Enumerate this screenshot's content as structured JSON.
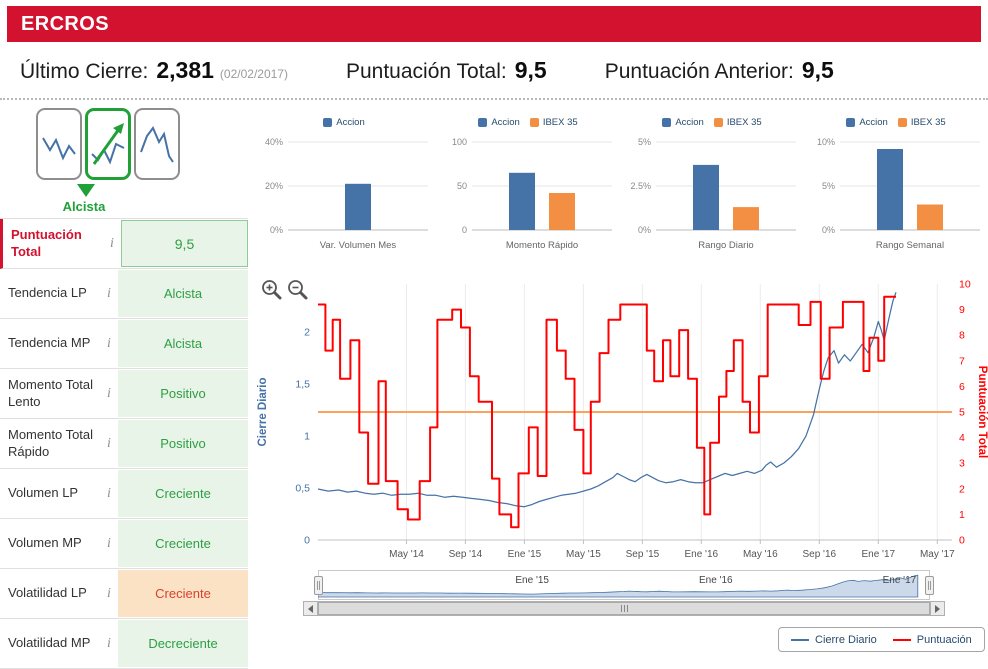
{
  "colors": {
    "accent": "#d2122e",
    "bar_blue": "#4572a7",
    "bar_orange": "#f28f43",
    "line_blue": "#4572a7",
    "line_red": "#ff0000",
    "threshold": "#f9a45c",
    "positive_text": "#2f9e44",
    "positive_bg": "#e7f4e7",
    "negative_text": "#d9412f",
    "negative_bg": "#fbe2c4",
    "legend_text": "#274b6d",
    "trend_green": "#21a038"
  },
  "header": {
    "title": "ERCROS"
  },
  "summary": {
    "items": [
      {
        "label": "Último Cierre:",
        "value": "2,381",
        "suffix": "(02/02/2017)"
      },
      {
        "label": "Puntuación Total:",
        "value": "9,5",
        "suffix": ""
      },
      {
        "label": "Puntuación Anterior:",
        "value": "9,5",
        "suffix": ""
      }
    ]
  },
  "trend": {
    "label": "Alcista"
  },
  "indicators": [
    {
      "label": "Puntuación Total",
      "value": "9,5",
      "state": "score"
    },
    {
      "label": "Tendencia LP",
      "value": "Alcista",
      "state": "positive"
    },
    {
      "label": "Tendencia MP",
      "value": "Alcista",
      "state": "positive"
    },
    {
      "label": "Momento Total Lento",
      "value": "Positivo",
      "state": "positive"
    },
    {
      "label": "Momento Total Rápido",
      "value": "Positivo",
      "state": "positive"
    },
    {
      "label": "Volumen LP",
      "value": "Creciente",
      "state": "positive"
    },
    {
      "label": "Volumen MP",
      "value": "Creciente",
      "state": "positive"
    },
    {
      "label": "Volatilidad LP",
      "value": "Creciente",
      "state": "negative"
    },
    {
      "label": "Volatilidad MP",
      "value": "Decreciente",
      "state": "positive"
    }
  ],
  "chart_data": [
    {
      "type": "bar",
      "title": "Var. Volumen Mes",
      "legend": [
        "Accion"
      ],
      "ymax": 40,
      "yticks": [
        [
          0,
          "0%"
        ],
        [
          20,
          "20%"
        ],
        [
          40,
          "40%"
        ]
      ],
      "series": [
        {
          "name": "Accion",
          "value": 21
        }
      ]
    },
    {
      "type": "bar",
      "title": "Momento Rápido",
      "legend": [
        "Accion",
        "IBEX 35"
      ],
      "ymax": 100,
      "yticks": [
        [
          0,
          "0"
        ],
        [
          50,
          "50"
        ],
        [
          100,
          "100"
        ]
      ],
      "series": [
        {
          "name": "Accion",
          "value": 65
        },
        {
          "name": "IBEX 35",
          "value": 42
        }
      ]
    },
    {
      "type": "bar",
      "title": "Rango Diario",
      "legend": [
        "Accion",
        "IBEX 35"
      ],
      "ymax": 5,
      "yticks": [
        [
          0,
          "0%"
        ],
        [
          2.5,
          "2.5%"
        ],
        [
          5,
          "5%"
        ]
      ],
      "series": [
        {
          "name": "Accion",
          "value": 3.7
        },
        {
          "name": "IBEX 35",
          "value": 1.3
        }
      ]
    },
    {
      "type": "bar",
      "title": "Rango Semanal",
      "legend": [
        "Accion",
        "IBEX 35"
      ],
      "ymax": 10,
      "yticks": [
        [
          0,
          "0%"
        ],
        [
          5,
          "5%"
        ],
        [
          10,
          "10%"
        ]
      ],
      "series": [
        {
          "name": "Accion",
          "value": 9.2
        },
        {
          "name": "IBEX 35",
          "value": 2.9
        }
      ]
    },
    {
      "type": "line",
      "title": "",
      "x_range": [
        0,
        43
      ],
      "x_ticks": [
        {
          "m": 6,
          "label": "May '14"
        },
        {
          "m": 10,
          "label": "Sep '14"
        },
        {
          "m": 14,
          "label": "Ene '15"
        },
        {
          "m": 18,
          "label": "May '15"
        },
        {
          "m": 22,
          "label": "Sep '15"
        },
        {
          "m": 26,
          "label": "Ene '16"
        },
        {
          "m": 30,
          "label": "May '16"
        },
        {
          "m": 34,
          "label": "Sep '16"
        },
        {
          "m": 38,
          "label": "Ene '17"
        },
        {
          "m": 42,
          "label": "May '17"
        }
      ],
      "left_axis": {
        "label": "Cierre Diario",
        "max": 2.46,
        "ticks": [
          [
            0,
            "0"
          ],
          [
            0.5,
            "0,5"
          ],
          [
            1,
            "1"
          ],
          [
            1.5,
            "1,5"
          ],
          [
            2,
            "2"
          ]
        ]
      },
      "right_axis": {
        "label": "Puntuación Total",
        "max": 10,
        "ticks": [
          0,
          1,
          2,
          3,
          4,
          5,
          6,
          7,
          8,
          9,
          10
        ]
      },
      "threshold": 5,
      "series": [
        {
          "name": "Cierre Diario",
          "axis": "left",
          "style": "line",
          "color_key": "line_blue",
          "points": [
            [
              0,
              0.49
            ],
            [
              0.7,
              0.47
            ],
            [
              1.4,
              0.48
            ],
            [
              2,
              0.46
            ],
            [
              2.6,
              0.47
            ],
            [
              3.2,
              0.45
            ],
            [
              3.8,
              0.44
            ],
            [
              4.4,
              0.45
            ],
            [
              5,
              0.43
            ],
            [
              5.6,
              0.44
            ],
            [
              6.2,
              0.44
            ],
            [
              6.8,
              0.45
            ],
            [
              7.4,
              0.43
            ],
            [
              8,
              0.43
            ],
            [
              8.6,
              0.41
            ],
            [
              9.2,
              0.42
            ],
            [
              9.8,
              0.41
            ],
            [
              10.4,
              0.4
            ],
            [
              11,
              0.39
            ],
            [
              11.6,
              0.38
            ],
            [
              12.2,
              0.36
            ],
            [
              12.8,
              0.35
            ],
            [
              13.4,
              0.33
            ],
            [
              14,
              0.32
            ],
            [
              14.5,
              0.34
            ],
            [
              15,
              0.37
            ],
            [
              15.5,
              0.39
            ],
            [
              16,
              0.41
            ],
            [
              16.5,
              0.43
            ],
            [
              17,
              0.44
            ],
            [
              17.5,
              0.45
            ],
            [
              18,
              0.47
            ],
            [
              18.5,
              0.49
            ],
            [
              19,
              0.52
            ],
            [
              19.5,
              0.56
            ],
            [
              20,
              0.6
            ],
            [
              20.3,
              0.64
            ],
            [
              20.7,
              0.61
            ],
            [
              21.1,
              0.58
            ],
            [
              21.5,
              0.56
            ],
            [
              21.9,
              0.6
            ],
            [
              22.3,
              0.63
            ],
            [
              22.7,
              0.6
            ],
            [
              23.1,
              0.57
            ],
            [
              23.6,
              0.55
            ],
            [
              24.1,
              0.56
            ],
            [
              24.6,
              0.58
            ],
            [
              25.1,
              0.56
            ],
            [
              25.6,
              0.55
            ],
            [
              26.1,
              0.55
            ],
            [
              26.6,
              0.58
            ],
            [
              27.1,
              0.61
            ],
            [
              27.6,
              0.64
            ],
            [
              28.1,
              0.62
            ],
            [
              28.6,
              0.64
            ],
            [
              29.1,
              0.66
            ],
            [
              29.6,
              0.64
            ],
            [
              30.1,
              0.67
            ],
            [
              30.4,
              0.72
            ],
            [
              30.7,
              0.75
            ],
            [
              31.1,
              0.7
            ],
            [
              31.6,
              0.74
            ],
            [
              32.1,
              0.8
            ],
            [
              32.6,
              0.88
            ],
            [
              33.1,
              1.0
            ],
            [
              33.6,
              1.2
            ],
            [
              34,
              1.45
            ],
            [
              34.3,
              1.62
            ],
            [
              34.6,
              1.75
            ],
            [
              35,
              1.82
            ],
            [
              35.3,
              1.7
            ],
            [
              35.7,
              1.78
            ],
            [
              36.1,
              1.72
            ],
            [
              36.5,
              1.8
            ],
            [
              36.9,
              1.88
            ],
            [
              37.3,
              1.8
            ],
            [
              37.7,
              1.95
            ],
            [
              38,
              2.1
            ],
            [
              38.2,
              2.02
            ],
            [
              38.4,
              1.92
            ],
            [
              38.6,
              2.05
            ],
            [
              38.8,
              2.18
            ],
            [
              39,
              2.3
            ],
            [
              39.2,
              2.38
            ]
          ]
        },
        {
          "name": "Puntuación",
          "axis": "right",
          "style": "step",
          "color_key": "line_red",
          "points": [
            [
              0,
              9.2
            ],
            [
              0.5,
              7.4
            ],
            [
              1,
              8.6
            ],
            [
              1.5,
              6.3
            ],
            [
              2.2,
              7.8
            ],
            [
              2.8,
              4.2
            ],
            [
              3.4,
              2.2
            ],
            [
              4.1,
              6.2
            ],
            [
              4.6,
              2.3
            ],
            [
              5.4,
              1.2
            ],
            [
              6.1,
              0.8
            ],
            [
              6.9,
              2.3
            ],
            [
              7.6,
              4.4
            ],
            [
              8.1,
              8.6
            ],
            [
              9.1,
              9.0
            ],
            [
              9.7,
              8.3
            ],
            [
              10.3,
              6.4
            ],
            [
              10.9,
              5.4
            ],
            [
              11.8,
              2.4
            ],
            [
              12.3,
              1.0
            ],
            [
              13.1,
              0.5
            ],
            [
              13.6,
              2.6
            ],
            [
              14.3,
              4.4
            ],
            [
              14.9,
              2.5
            ],
            [
              15.5,
              8.6
            ],
            [
              16.2,
              7.4
            ],
            [
              16.8,
              6.3
            ],
            [
              17.4,
              4.3
            ],
            [
              18,
              2.6
            ],
            [
              18.5,
              5.4
            ],
            [
              19.1,
              7.3
            ],
            [
              19.7,
              8.6
            ],
            [
              20.5,
              9.2
            ],
            [
              22.3,
              7.4
            ],
            [
              22.8,
              6.2
            ],
            [
              23.4,
              7.8
            ],
            [
              23.9,
              6.4
            ],
            [
              24.5,
              8.2
            ],
            [
              25.1,
              6.3
            ],
            [
              25.7,
              3.6
            ],
            [
              26.2,
              1.0
            ],
            [
              26.6,
              3.8
            ],
            [
              27.2,
              5.6
            ],
            [
              27.7,
              6.6
            ],
            [
              28.2,
              7.8
            ],
            [
              28.8,
              5.4
            ],
            [
              29.3,
              4.2
            ],
            [
              29.9,
              6.4
            ],
            [
              30.5,
              9.2
            ],
            [
              32.6,
              8.4
            ],
            [
              33.4,
              9.3
            ],
            [
              34.1,
              6.3
            ],
            [
              34.7,
              8.3
            ],
            [
              35.6,
              9.3
            ],
            [
              37,
              6.6
            ],
            [
              37.4,
              7.9
            ],
            [
              38,
              7.0
            ],
            [
              38.4,
              9.5
            ],
            [
              39.2,
              9.5
            ]
          ]
        }
      ]
    }
  ],
  "navigator": {
    "x_range": [
      0,
      40
    ],
    "ticks": [
      {
        "m": 14,
        "label": "Ene '15"
      },
      {
        "m": 26,
        "label": "Ene '16"
      },
      {
        "m": 38,
        "label": "Ene '17"
      }
    ]
  },
  "chart_legend": [
    {
      "label": "Cierre Diario",
      "color_key": "line_blue"
    },
    {
      "label": "Puntuación",
      "color_key": "line_red"
    }
  ]
}
